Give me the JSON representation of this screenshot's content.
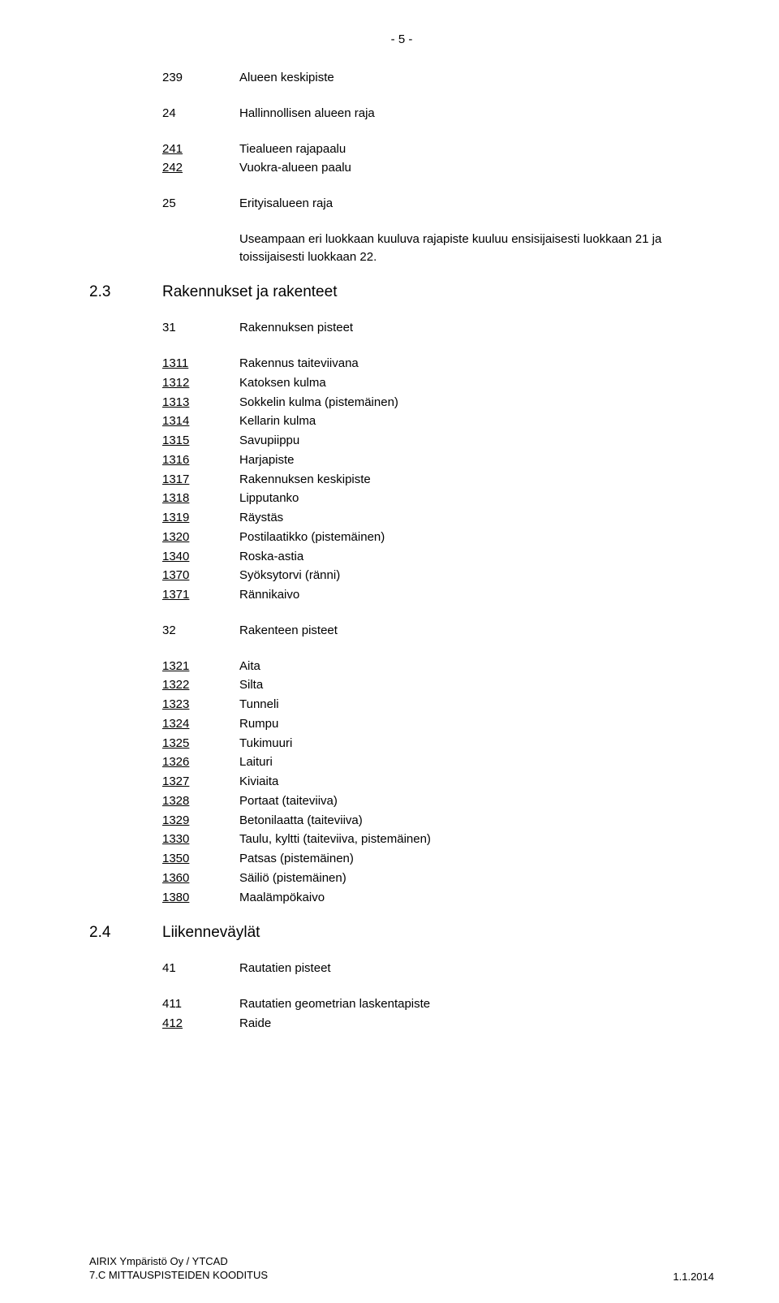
{
  "page_number": "- 5 -",
  "group1": [
    {
      "code": "239",
      "label": "Alueen keskipiste",
      "underline": false
    }
  ],
  "group2": [
    {
      "code": "24",
      "label": "Hallinnollisen alueen raja",
      "underline": false
    }
  ],
  "group3": [
    {
      "code": "241",
      "label": "Tiealueen rajapaalu",
      "underline": true
    },
    {
      "code": "242",
      "label": "Vuokra-alueen paalu",
      "underline": true
    }
  ],
  "group4": [
    {
      "code": "25",
      "label": "Erityisalueen raja",
      "underline": false
    }
  ],
  "paragraph": "Useampaan eri luokkaan kuuluva rajapiste kuuluu ensisijaisesti luokkaan 21 ja toissijaisesti luokkaan 22.",
  "section23": {
    "num": "2.3",
    "title": "Rakennukset ja rakenteet"
  },
  "sub31": {
    "code": "31",
    "label": "Rakennuksen pisteet"
  },
  "list31": [
    {
      "code": "1311",
      "label": "Rakennus taiteviivana",
      "underline": true
    },
    {
      "code": "1312",
      "label": "Katoksen kulma",
      "underline": true
    },
    {
      "code": "1313",
      "label": "Sokkelin kulma (pistemäinen)",
      "underline": true
    },
    {
      "code": "1314",
      "label": "Kellarin kulma",
      "underline": true
    },
    {
      "code": "1315",
      "label": "Savupiippu",
      "underline": true
    },
    {
      "code": "1316",
      "label": "Harjapiste",
      "underline": true
    },
    {
      "code": "1317",
      "label": "Rakennuksen keskipiste",
      "underline": true
    },
    {
      "code": "1318",
      "label": "Lipputanko",
      "underline": true
    },
    {
      "code": "1319",
      "label": "Räystäs",
      "underline": true
    },
    {
      "code": "1320",
      "label": "Postilaatikko (pistemäinen)",
      "underline": true
    },
    {
      "code": "1340",
      "label": "Roska-astia",
      "underline": true
    },
    {
      "code": "1370",
      "label": "Syöksytorvi (ränni)",
      "underline": true
    },
    {
      "code": "1371",
      "label": "Rännikaivo",
      "underline": true
    }
  ],
  "sub32": {
    "code": "32",
    "label": "Rakenteen pisteet"
  },
  "list32": [
    {
      "code": "1321",
      "label": "Aita",
      "underline": true
    },
    {
      "code": "1322",
      "label": "Silta",
      "underline": true
    },
    {
      "code": "1323",
      "label": "Tunneli",
      "underline": true
    },
    {
      "code": "1324",
      "label": "Rumpu",
      "underline": true
    },
    {
      "code": "1325",
      "label": "Tukimuuri",
      "underline": true
    },
    {
      "code": "1326",
      "label": "Laituri",
      "underline": true
    },
    {
      "code": "1327",
      "label": "Kiviaita",
      "underline": true
    },
    {
      "code": "1328",
      "label": "Portaat (taiteviiva)",
      "underline": true
    },
    {
      "code": "1329",
      "label": "Betonilaatta (taiteviiva)",
      "underline": true
    },
    {
      "code": "1330",
      "label": "Taulu, kyltti (taiteviiva, pistemäinen)",
      "underline": true
    },
    {
      "code": "1350",
      "label": "Patsas (pistemäinen)",
      "underline": true
    },
    {
      "code": "1360",
      "label": "Säiliö (pistemäinen)",
      "underline": true
    },
    {
      "code": "1380",
      "label": "Maalämpökaivo",
      "underline": true
    }
  ],
  "section24": {
    "num": "2.4",
    "title": "Liikenneväylät"
  },
  "sub41": {
    "code": "41",
    "label": "Rautatien pisteet"
  },
  "list41": [
    {
      "code": "411",
      "label": "Rautatien geometrian laskentapiste",
      "underline": false
    },
    {
      "code": "412",
      "label": "Raide",
      "underline": true
    }
  ],
  "footer": {
    "left1": "AIRIX Ympäristö Oy / YTCAD",
    "left2": "7.C MITTAUSPISTEIDEN KOODITUS",
    "right": "1.1.2014"
  }
}
